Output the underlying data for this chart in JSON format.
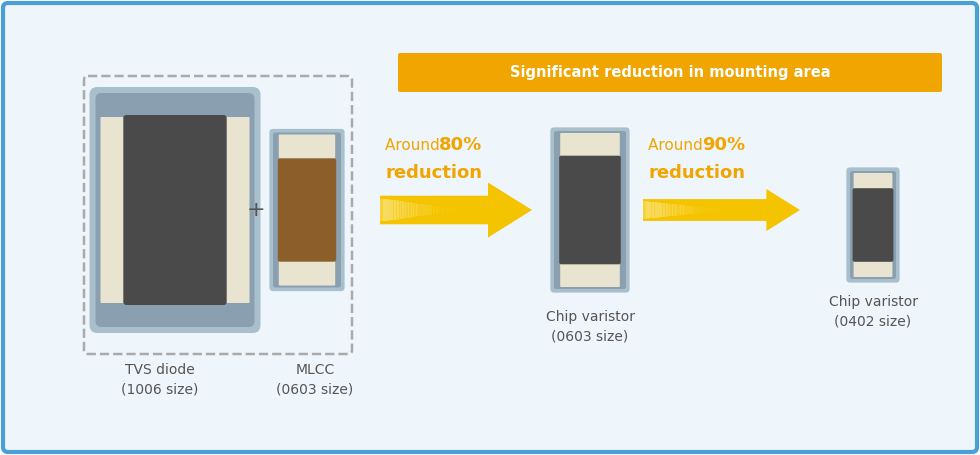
{
  "bg_color": "#eef5fb",
  "border_color": "#4a9fd4",
  "fig_bg": "#ffffff",
  "orange_banner_color": "#f0a500",
  "banner_text": "Significant reduction in mounting area",
  "banner_text_color": "#ffffff",
  "arrow_color": "#f5c400",
  "shell_color_light": "#a8bfcc",
  "shell_color_dark": "#8aa0b0",
  "terminal_color": "#e8e4d0",
  "tvs_body_color": "#4a4a4a",
  "mlcc_body_color": "#8b5e2a",
  "var_body_color": "#4a4a4a",
  "dashed_box_color": "#aaaaaa",
  "text_color_gray": "#555555",
  "text_color_orange": "#f0a500",
  "label_tvs": "TVS diode\n(1006 size)",
  "label_plus": "+",
  "label_mlcc": "MLCC\n(0603 size)",
  "label_var0603": "Chip varistor\n(0603 size)",
  "label_var0402": "Chip varistor\n(0402 size)"
}
